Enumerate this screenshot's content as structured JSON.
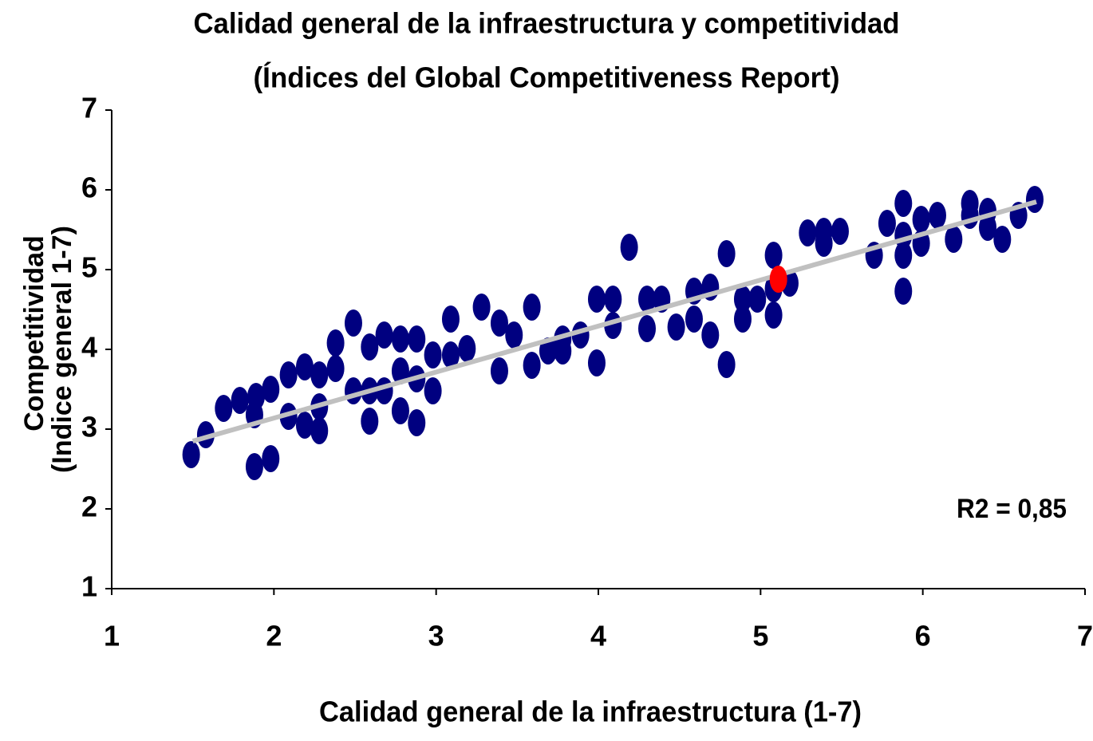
{
  "chart_data": {
    "type": "scatter",
    "title": "Calidad general de la infraestructura y competitividad",
    "subtitle": "(Índices del Global Competitiveness Report)",
    "xlabel": "Calidad general de la infraestructura (1-7)",
    "ylabel": [
      "Competitividad",
      "(Indice general 1-7)"
    ],
    "annotation": "R2 = 0,85",
    "xlim": [
      1,
      7
    ],
    "ylim": [
      1,
      7
    ],
    "xticks": [
      1,
      2,
      3,
      4,
      5,
      6,
      7
    ],
    "yticks": [
      1,
      2,
      3,
      4,
      5,
      6,
      7
    ],
    "grid": false,
    "series": [
      {
        "type": "scatter",
        "color": "#000080",
        "x": [
          1.49,
          1.58,
          1.69,
          1.79,
          1.88,
          1.89,
          1.88,
          1.98,
          1.98,
          2.09,
          2.09,
          2.19,
          2.19,
          2.28,
          2.28,
          2.28,
          2.38,
          2.38,
          2.49,
          2.49,
          2.59,
          2.59,
          2.59,
          2.68,
          2.68,
          2.78,
          2.78,
          2.78,
          2.88,
          2.88,
          2.88,
          2.98,
          2.98,
          3.09,
          3.09,
          3.19,
          3.28,
          3.39,
          3.39,
          3.48,
          3.59,
          3.59,
          3.69,
          3.78,
          3.78,
          3.89,
          3.99,
          3.99,
          4.09,
          4.09,
          4.19,
          4.3,
          4.3,
          4.39,
          4.48,
          4.59,
          4.59,
          4.69,
          4.69,
          4.79,
          4.79,
          4.89,
          4.89,
          4.98,
          5.08,
          5.08,
          5.08,
          5.18,
          5.29,
          5.39,
          5.39,
          5.49,
          5.7,
          5.78,
          5.88,
          5.88,
          5.88,
          5.88,
          5.99,
          5.99,
          6.09,
          6.19,
          6.29,
          6.29,
          6.4,
          6.4,
          6.49,
          6.59,
          6.69
        ],
        "values": [
          2.68,
          2.93,
          3.26,
          3.36,
          3.18,
          3.41,
          2.53,
          2.63,
          3.5,
          3.68,
          3.16,
          3.78,
          3.05,
          3.68,
          2.98,
          3.28,
          4.08,
          3.76,
          4.33,
          3.48,
          3.48,
          3.1,
          4.03,
          4.18,
          3.48,
          4.13,
          3.73,
          3.23,
          4.13,
          3.08,
          3.63,
          3.48,
          3.93,
          4.38,
          3.93,
          4.01,
          4.53,
          4.33,
          3.73,
          4.18,
          4.53,
          3.8,
          3.98,
          4.13,
          3.98,
          4.18,
          4.63,
          3.83,
          4.63,
          4.3,
          5.28,
          4.63,
          4.26,
          4.63,
          4.28,
          4.73,
          4.38,
          4.78,
          4.18,
          5.2,
          3.81,
          4.63,
          4.38,
          4.63,
          5.18,
          4.43,
          4.76,
          4.83,
          5.46,
          5.48,
          5.33,
          5.48,
          5.18,
          5.58,
          5.83,
          5.43,
          5.18,
          4.73,
          5.63,
          5.33,
          5.68,
          5.38,
          5.68,
          5.83,
          5.73,
          5.53,
          5.38,
          5.68,
          5.88
        ]
      },
      {
        "type": "scatter",
        "color": "#ff0000",
        "x": [
          5.11
        ],
        "values": [
          4.88
        ]
      },
      {
        "type": "line",
        "color": "#c0c0c0",
        "x": [
          1.5,
          6.7
        ],
        "values": [
          2.85,
          5.85
        ]
      }
    ]
  }
}
